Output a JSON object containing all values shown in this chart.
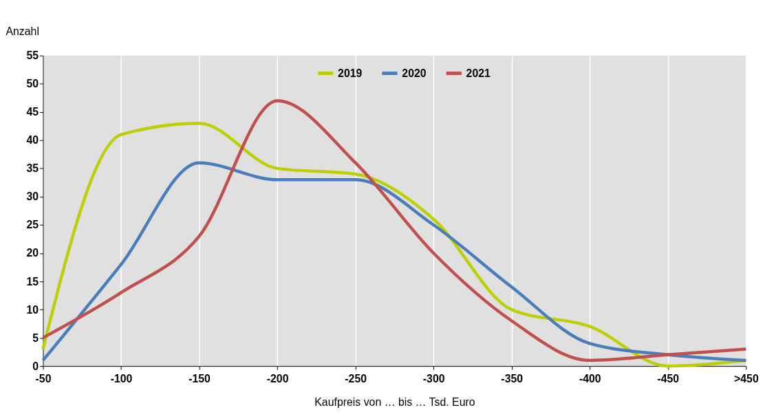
{
  "chart_data": {
    "type": "line",
    "ylabel": "Anzahl",
    "xlabel": "Kaufpreis von … bis … Tsd. Euro",
    "categories": [
      "-50",
      "-100",
      "-150",
      "-200",
      "-250",
      "-300",
      "-350",
      "-400",
      "-450",
      ">450"
    ],
    "series": [
      {
        "name": "2019",
        "color": "#bcd000",
        "values": [
          3,
          41,
          43,
          35,
          34,
          26,
          10,
          7,
          0,
          1
        ]
      },
      {
        "name": "2020",
        "color": "#4a7ebb",
        "values": [
          1,
          18,
          36,
          33,
          33,
          25,
          14,
          4,
          2,
          1
        ]
      },
      {
        "name": "2021",
        "color": "#c0504d",
        "values": [
          5,
          13,
          23,
          47,
          36,
          20,
          8,
          1,
          2,
          3
        ]
      }
    ],
    "ylim": [
      0,
      55
    ],
    "yticks": [
      0,
      5,
      10,
      15,
      20,
      25,
      30,
      35,
      40,
      45,
      50,
      55
    ],
    "grid": "x",
    "legend": "top",
    "marker": "none",
    "line_style": "solid"
  }
}
